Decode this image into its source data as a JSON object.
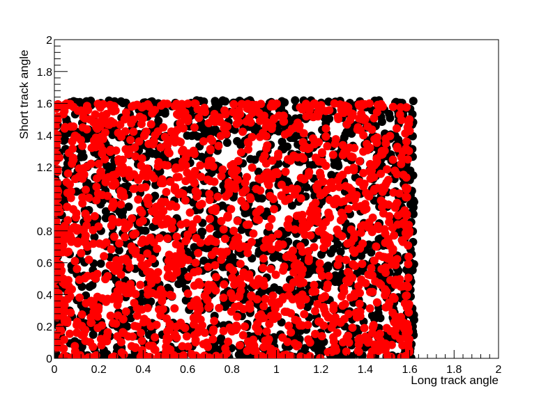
{
  "chart_data": {
    "type": "scatter",
    "title": "",
    "xlabel": "Long track angle",
    "ylabel": "Short track angle",
    "xlim": [
      0,
      2
    ],
    "ylim": [
      0,
      2
    ],
    "xticks": [
      0,
      0.2,
      0.4,
      0.6,
      0.8,
      1,
      1.2,
      1.4,
      1.6,
      1.8,
      2
    ],
    "yticks": [
      0,
      0.2,
      0.4,
      0.6,
      0.8,
      1,
      1.2,
      1.4,
      1.6,
      1.8,
      2
    ],
    "ytick_labels": [
      "0",
      "0.2",
      "0.4",
      "0.6",
      "0.8",
      "",
      "1.2",
      "1.4",
      "1.6",
      "1.8",
      "2"
    ],
    "grid": false,
    "legend": "none",
    "series": [
      {
        "color": "#000000",
        "x_range": [
          0,
          1.62
        ],
        "y_range": [
          0,
          1.62
        ]
      },
      {
        "color": "#ff0000",
        "x_range": [
          0,
          1.6
        ],
        "y_range": [
          0,
          1.6
        ]
      }
    ]
  }
}
